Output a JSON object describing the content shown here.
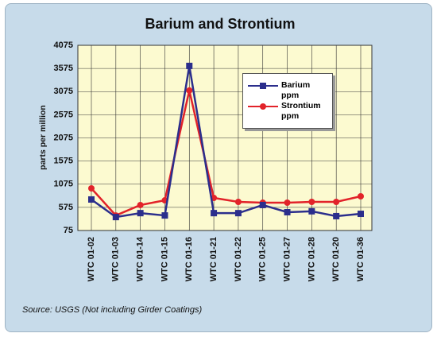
{
  "chart_data": {
    "type": "line",
    "title": "Barium and Strontium",
    "y_label": "parts per million",
    "source": "Source:  USGS   (Not including Girder Coatings)",
    "categories": [
      "WTC 01-02",
      "WTC 01-03",
      "WTC 01-14",
      "WTC 01-15",
      "WTC 01-16",
      "WTC 01-21",
      "WTC 01-22",
      "WTC 01-25",
      "WTC 01-27",
      "WTC 01-28",
      "WTC 01-20",
      "WTC 01-36"
    ],
    "series": [
      {
        "name": "Barium ppm",
        "color": "#2b2e8c",
        "marker": "square",
        "values": [
          745,
          365,
          450,
          400,
          3630,
          450,
          450,
          625,
          470,
          490,
          385,
          435
        ]
      },
      {
        "name": "Strontium ppm",
        "color": "#e2232a",
        "marker": "circle",
        "values": [
          985,
          400,
          625,
          727,
          3100,
          779,
          693,
          676,
          676,
          693,
          693,
          813
        ]
      }
    ],
    "ylim": [
      75,
      4075
    ],
    "yticks": [
      75,
      575,
      1075,
      1575,
      2075,
      2575,
      3075,
      3575,
      4075
    ],
    "grid": true
  }
}
